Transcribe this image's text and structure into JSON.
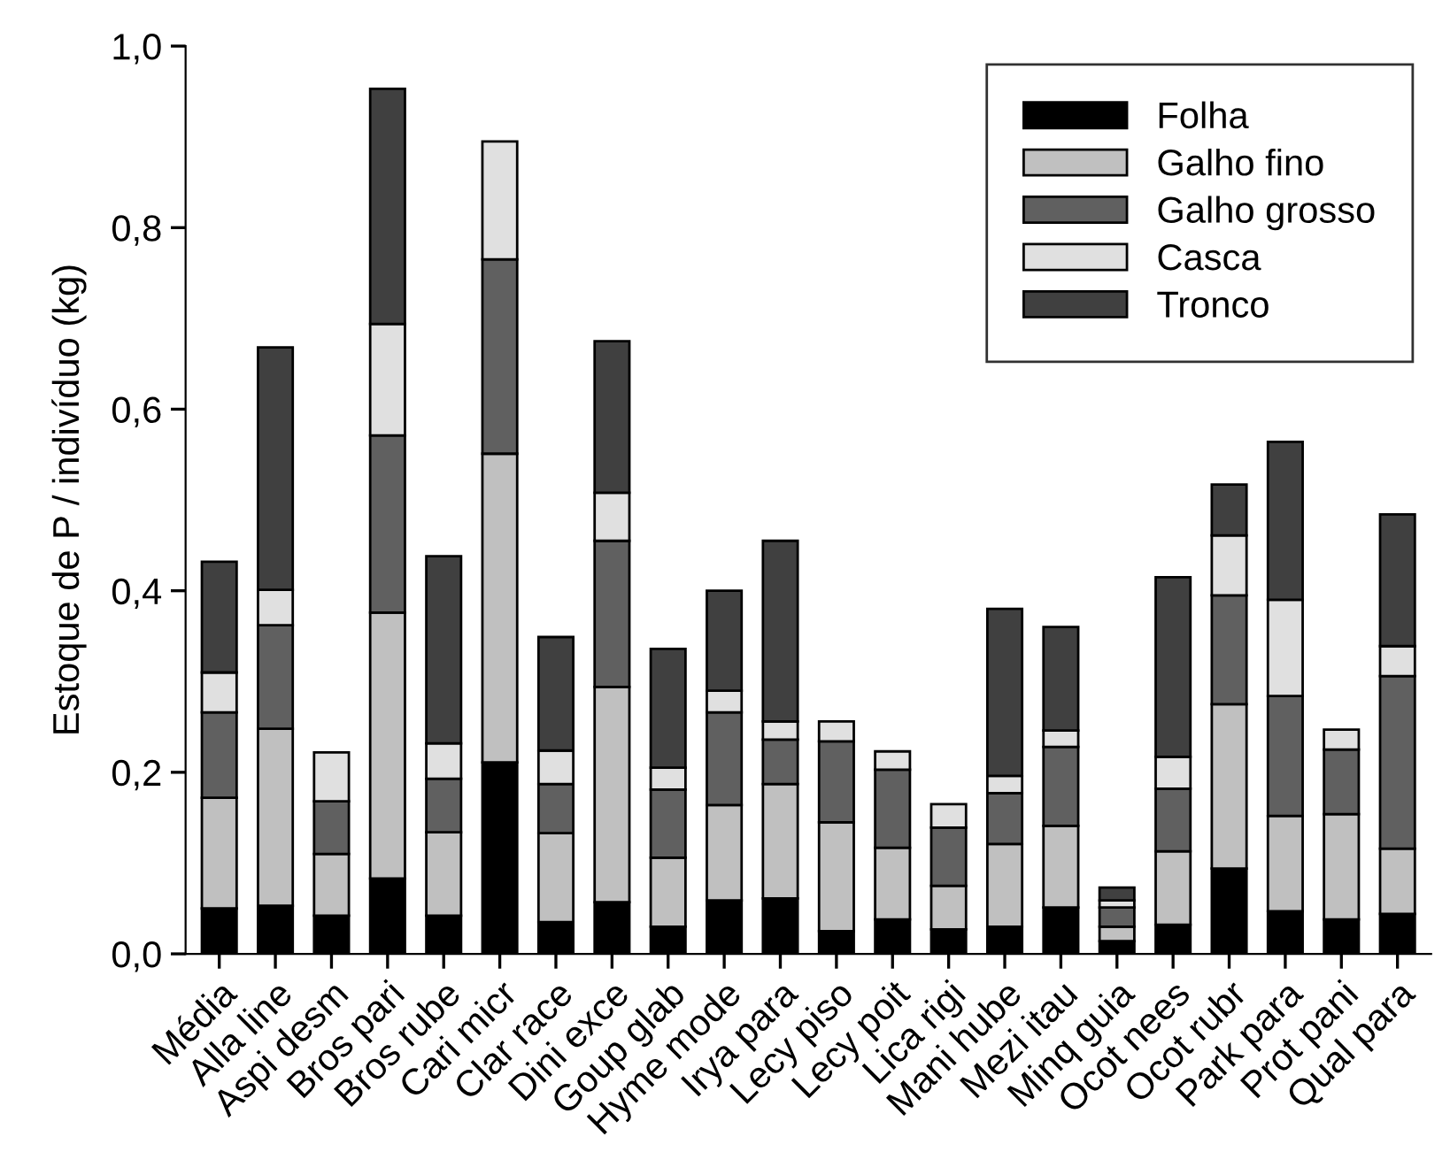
{
  "chart_data": {
    "type": "bar",
    "stacked": true,
    "ylabel": "Estoque de P / indivíduo (kg)",
    "categories": [
      "Média",
      "Alla line",
      "Aspi desm",
      "Bros pari",
      "Bros rube",
      "Cari micr",
      "Clar race",
      "Dini exce",
      "Goup glab",
      "Hyme mode",
      "Irya para",
      "Lecy piso",
      "Lecy poit",
      "Lica rigi",
      "Mani hube",
      "Mezi itau",
      "Minq guia",
      "Ocot nees",
      "Ocot rubr",
      "Park para",
      "Prot pani",
      "Qual para"
    ],
    "series": [
      {
        "name": "Folha",
        "color": "#000000",
        "values": [
          0.05,
          0.053,
          0.042,
          0.083,
          0.042,
          0.211,
          0.035,
          0.057,
          0.03,
          0.059,
          0.061,
          0.025,
          0.038,
          0.027,
          0.03,
          0.051,
          0.014,
          0.032,
          0.094,
          0.047,
          0.038,
          0.044
        ]
      },
      {
        "name": "Galho fino",
        "color": "#c0c0c0",
        "values": [
          0.122,
          0.195,
          0.068,
          0.293,
          0.092,
          0.34,
          0.098,
          0.237,
          0.076,
          0.105,
          0.126,
          0.12,
          0.079,
          0.048,
          0.091,
          0.09,
          0.016,
          0.081,
          0.181,
          0.105,
          0.116,
          0.072
        ]
      },
      {
        "name": "Galho grosso",
        "color": "#606060",
        "values": [
          0.094,
          0.114,
          0.058,
          0.195,
          0.059,
          0.214,
          0.054,
          0.161,
          0.075,
          0.102,
          0.049,
          0.089,
          0.086,
          0.064,
          0.056,
          0.087,
          0.021,
          0.069,
          0.12,
          0.132,
          0.071,
          0.19
        ]
      },
      {
        "name": "Casca",
        "color": "#e0e0e0",
        "values": [
          0.044,
          0.039,
          0.054,
          0.123,
          0.039,
          0.13,
          0.037,
          0.053,
          0.024,
          0.024,
          0.02,
          0.022,
          0.02,
          0.026,
          0.019,
          0.018,
          0.008,
          0.035,
          0.066,
          0.106,
          0.022,
          0.033
        ]
      },
      {
        "name": "Tronco",
        "color": "#404040",
        "values": [
          0.122,
          0.267,
          null,
          0.259,
          0.206,
          null,
          0.125,
          0.167,
          0.131,
          0.11,
          0.199,
          null,
          null,
          null,
          0.184,
          0.114,
          0.014,
          0.198,
          0.056,
          0.174,
          null,
          0.145
        ]
      }
    ],
    "ylim": [
      0,
      1.0
    ],
    "yticks": [
      {
        "value": 0,
        "label": "0,0"
      },
      {
        "value": 0.2,
        "label": "0,2"
      },
      {
        "value": 0.4,
        "label": "0,4"
      },
      {
        "value": 0.6,
        "label": "0,6"
      },
      {
        "value": 0.8,
        "label": "0,8"
      },
      {
        "value": 1.0,
        "label": "1,0"
      }
    ],
    "grid": false,
    "legend": "top right"
  }
}
